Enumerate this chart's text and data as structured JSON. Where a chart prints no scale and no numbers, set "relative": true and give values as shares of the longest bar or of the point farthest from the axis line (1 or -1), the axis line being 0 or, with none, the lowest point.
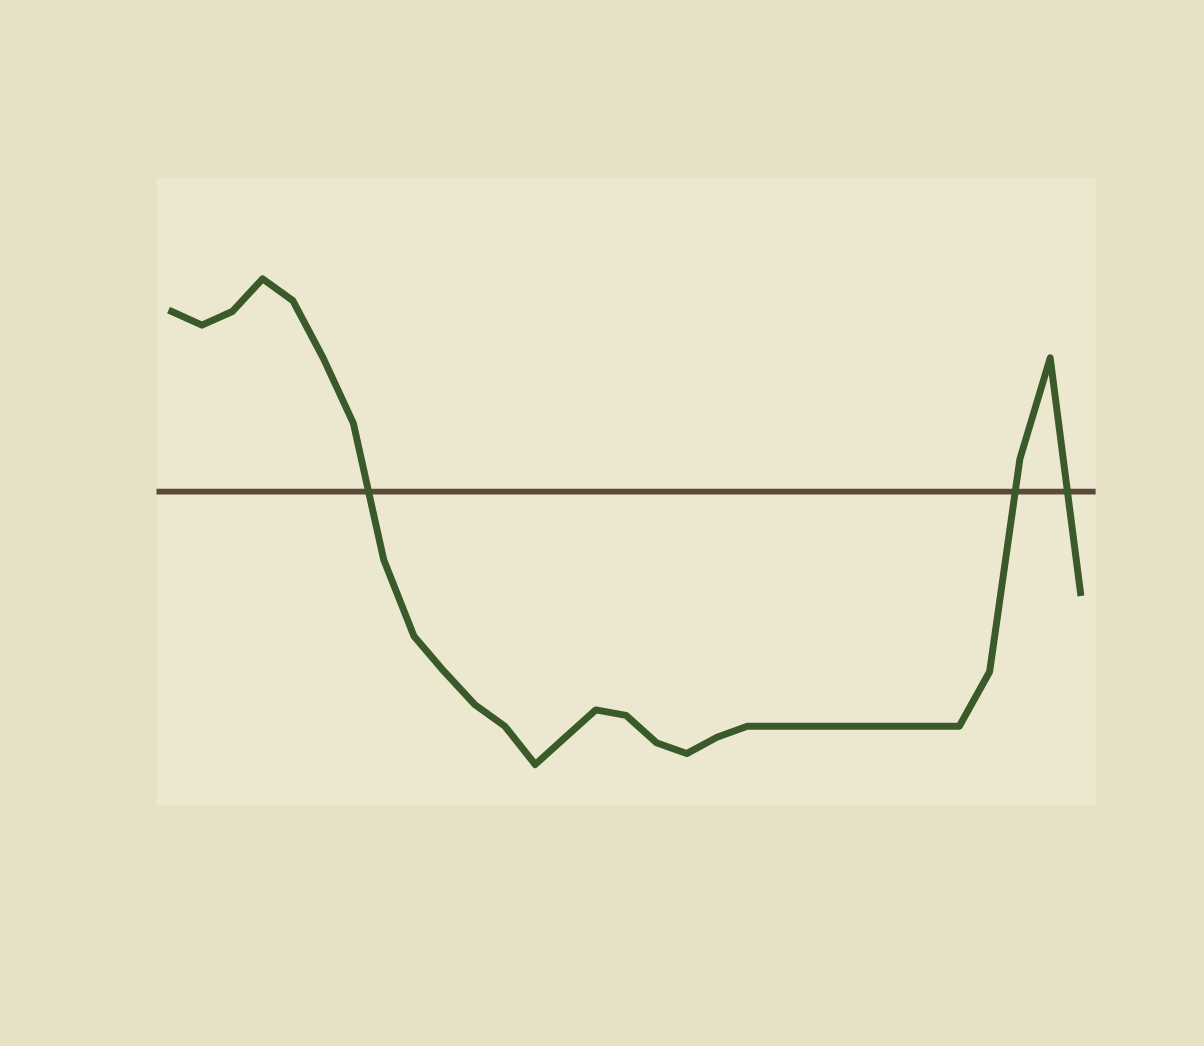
{
  "chart_data": {
    "type": "line",
    "relative": true,
    "categories": [
      null,
      null,
      null,
      null,
      null,
      null,
      null,
      null,
      null,
      null,
      null,
      null,
      null,
      null,
      null,
      null,
      null,
      null,
      null,
      null,
      null,
      null,
      null,
      null,
      null,
      null,
      null,
      null,
      null,
      null,
      null
    ],
    "series": [
      {
        "color": "#3a5a2a",
        "values": [
          0.66,
          0.61,
          0.66,
          0.78,
          0.7,
          0.49,
          0.25,
          -0.25,
          -0.53,
          -0.66,
          -0.78,
          -0.86,
          -1,
          -0.9,
          -0.8,
          -0.82,
          -0.92,
          -0.96,
          -0.9,
          -0.86,
          -0.86,
          -0.86,
          -0.86,
          -0.86,
          -0.86,
          -0.86,
          -0.86,
          -0.66,
          0.12,
          0.49,
          -0.37
        ]
      }
    ],
    "ref_lines": [
      {
        "axis": "y",
        "value": 0,
        "color": "#5a4a3a"
      }
    ]
  }
}
